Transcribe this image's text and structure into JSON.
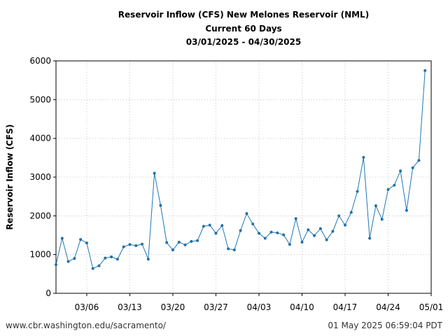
{
  "chart_data": {
    "type": "line",
    "title_lines": [
      "Reservoir Inflow (CFS) New Melones Reservoir (NML)",
      "Current 60 Days",
      "03/01/2025 - 04/30/2025"
    ],
    "xlabel": "",
    "ylabel": "Reservoir Inflow (CFS)",
    "ylim": [
      0,
      6000
    ],
    "yticks": [
      0,
      1000,
      2000,
      3000,
      4000,
      5000,
      6000
    ],
    "xlim": [
      "2025-03-01",
      "2025-05-01"
    ],
    "xticks": [
      {
        "date": "2025-03-06",
        "label": "03/06"
      },
      {
        "date": "2025-03-13",
        "label": "03/13"
      },
      {
        "date": "2025-03-20",
        "label": "03/20"
      },
      {
        "date": "2025-03-27",
        "label": "03/27"
      },
      {
        "date": "2025-04-03",
        "label": "04/03"
      },
      {
        "date": "2025-04-10",
        "label": "04/10"
      },
      {
        "date": "2025-04-17",
        "label": "04/17"
      },
      {
        "date": "2025-04-24",
        "label": "04/24"
      },
      {
        "date": "2025-05-01",
        "label": "05/01"
      }
    ],
    "grid": true,
    "line_color": "#1f77b4",
    "series": [
      {
        "x": [
          "2025-03-01",
          "2025-03-02",
          "2025-03-03",
          "2025-03-04",
          "2025-03-05",
          "2025-03-06",
          "2025-03-07",
          "2025-03-08",
          "2025-03-09",
          "2025-03-10",
          "2025-03-11",
          "2025-03-12",
          "2025-03-13",
          "2025-03-14",
          "2025-03-15",
          "2025-03-16",
          "2025-03-17",
          "2025-03-18",
          "2025-03-19",
          "2025-03-20",
          "2025-03-21",
          "2025-03-22",
          "2025-03-23",
          "2025-03-24",
          "2025-03-25",
          "2025-03-26",
          "2025-03-27",
          "2025-03-28",
          "2025-03-29",
          "2025-03-30",
          "2025-03-31",
          "2025-04-01",
          "2025-04-02",
          "2025-04-03",
          "2025-04-04",
          "2025-04-05",
          "2025-04-06",
          "2025-04-07",
          "2025-04-08",
          "2025-04-09",
          "2025-04-10",
          "2025-04-11",
          "2025-04-12",
          "2025-04-13",
          "2025-04-14",
          "2025-04-15",
          "2025-04-16",
          "2025-04-17",
          "2025-04-18",
          "2025-04-19",
          "2025-04-20",
          "2025-04-21",
          "2025-04-22",
          "2025-04-23",
          "2025-04-24",
          "2025-04-25",
          "2025-04-26",
          "2025-04-27",
          "2025-04-28",
          "2025-04-29",
          "2025-04-30"
        ],
        "values": [
          740,
          1420,
          820,
          900,
          1390,
          1300,
          640,
          710,
          910,
          940,
          880,
          1200,
          1260,
          1230,
          1270,
          880,
          3100,
          2270,
          1310,
          1120,
          1320,
          1250,
          1340,
          1360,
          1730,
          1760,
          1550,
          1750,
          1150,
          1120,
          1620,
          2060,
          1790,
          1550,
          1420,
          1580,
          1560,
          1510,
          1260,
          1930,
          1320,
          1640,
          1490,
          1670,
          1380,
          1600,
          2000,
          1760,
          2090,
          2630,
          3510,
          1420,
          2260,
          1910,
          2680,
          2790,
          3160,
          2140,
          3240,
          3430,
          5750
        ]
      }
    ]
  },
  "footer": {
    "left": "www.cbr.washington.edu/sacramento/",
    "right": "01 May 2025 06:59:04 PDT"
  }
}
